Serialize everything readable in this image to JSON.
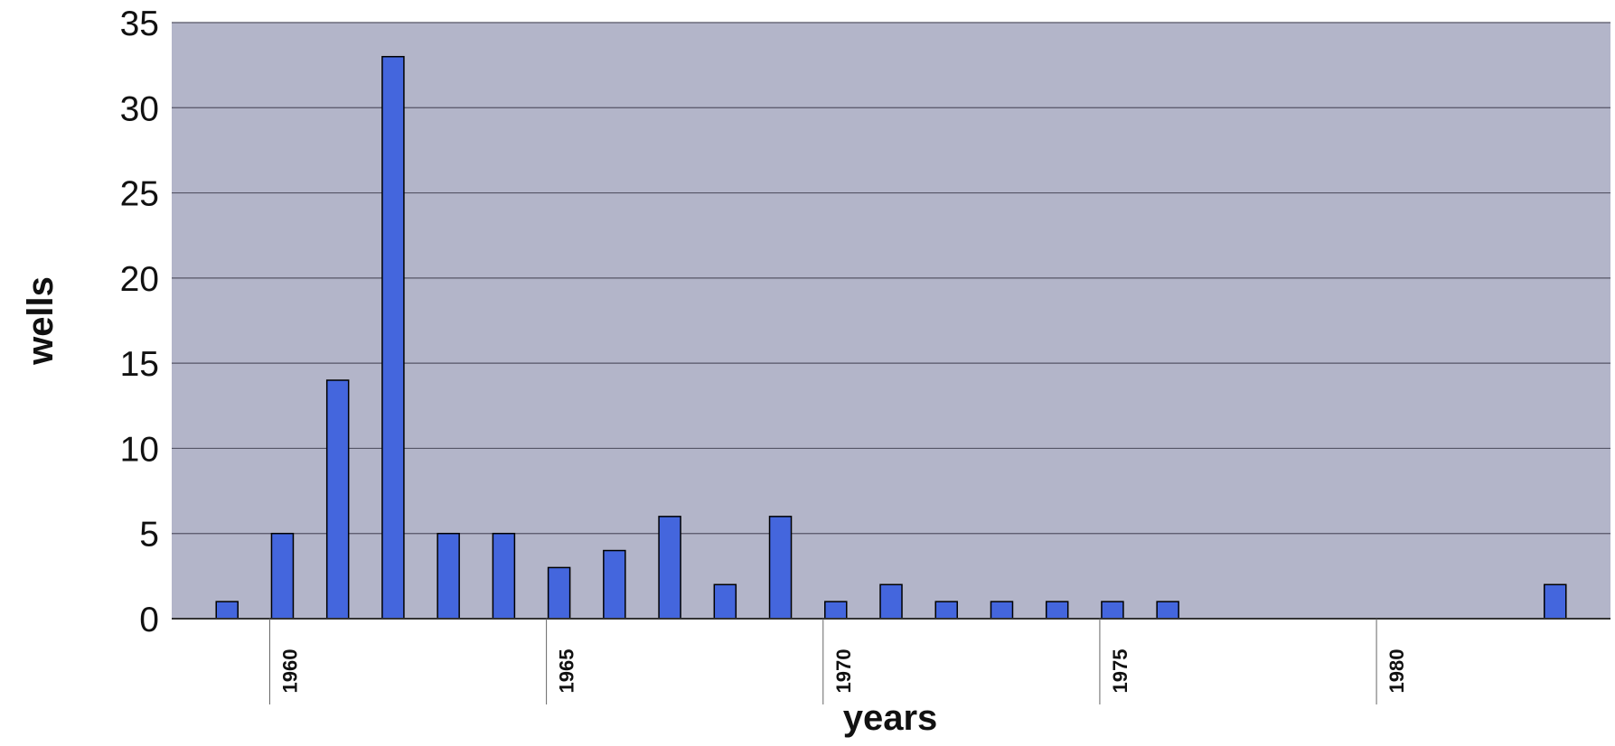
{
  "chart_data": {
    "type": "bar",
    "title": "",
    "xlabel": "years",
    "ylabel": "wells",
    "ylim": [
      0,
      35
    ],
    "yticks": [
      "0",
      "5",
      "10",
      "15",
      "20",
      "25",
      "30",
      "35"
    ],
    "xlim": [
      1958,
      1984
    ],
    "xtick_labels": [
      "1960",
      "1965",
      "1970",
      "1975",
      "1980"
    ],
    "grid": true,
    "legend": "none",
    "colors": {
      "bar": "#4466dd",
      "bar_edge": "#000000",
      "plot_area": "#b3b5c9",
      "gridline": "#555566"
    },
    "x": [
      1959,
      1960,
      1961,
      1962,
      1963,
      1964,
      1965,
      1966,
      1967,
      1968,
      1969,
      1970,
      1971,
      1972,
      1973,
      1974,
      1975,
      1976,
      1983
    ],
    "values": [
      1,
      5,
      14,
      33,
      5,
      5,
      3,
      4,
      6,
      2,
      6,
      1,
      2,
      1,
      1,
      1,
      1,
      1,
      2
    ]
  }
}
